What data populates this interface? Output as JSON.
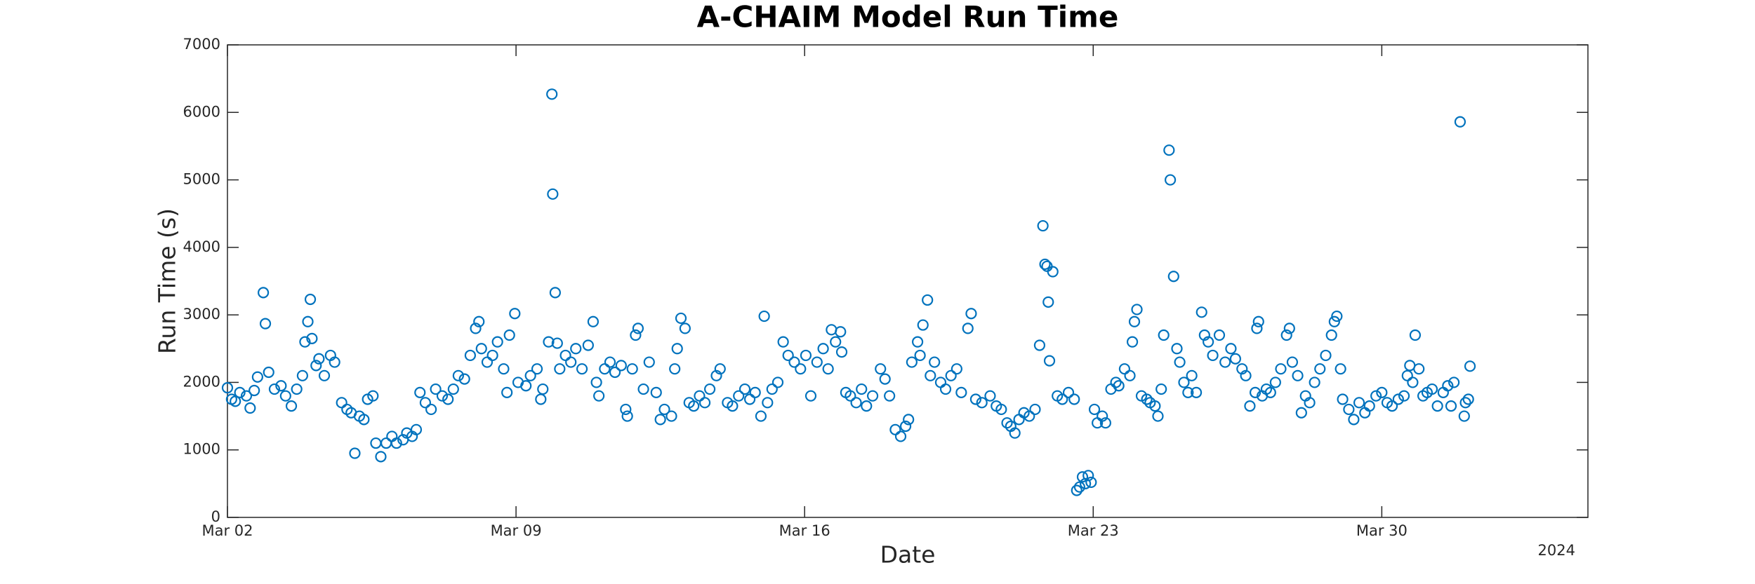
{
  "chart_data": {
    "type": "scatter",
    "title": "A-CHAIM Model Run Time",
    "xlabel": "Date",
    "ylabel": "Run Time (s)",
    "annotation": "2024",
    "color": "#0072bd",
    "xlim": [
      0,
      33
    ],
    "xticks": [
      {
        "value": 0,
        "label": "Mar 02"
      },
      {
        "value": 7,
        "label": "Mar 09"
      },
      {
        "value": 14,
        "label": "Mar 16"
      },
      {
        "value": 21,
        "label": "Mar 23"
      },
      {
        "value": 28,
        "label": "Mar 30"
      }
    ],
    "ylim": [
      0,
      7000
    ],
    "yticks": [
      0,
      1000,
      2000,
      3000,
      4000,
      5000,
      6000,
      7000
    ],
    "x": [
      0,
      0.1,
      0.19,
      0.3,
      0.46,
      0.55,
      0.65,
      0.73,
      0.87,
      0.92,
      1.0,
      1.14,
      1.3,
      1.41,
      1.55,
      1.68,
      1.82,
      1.88,
      1.95,
      2.01,
      2.05,
      2.15,
      2.22,
      2.35,
      2.5,
      2.6,
      2.77,
      2.9,
      3.0,
      3.09,
      3.2,
      3.31,
      3.4,
      3.53,
      3.6,
      3.72,
      3.85,
      3.99,
      4.1,
      4.26,
      4.35,
      4.48,
      4.58,
      4.67,
      4.8,
      4.94,
      5.05,
      5.21,
      5.35,
      5.48,
      5.6,
      5.75,
      5.89,
      6.02,
      6.1,
      6.16,
      6.3,
      6.43,
      6.55,
      6.7,
      6.78,
      6.84,
      6.97,
      7.05,
      7.24,
      7.35,
      7.51,
      7.6,
      7.65,
      7.79,
      7.87,
      7.89,
      7.95,
      8.0,
      8.06,
      8.2,
      8.33,
      8.45,
      8.6,
      8.75,
      8.87,
      8.95,
      9.01,
      9.15,
      9.28,
      9.4,
      9.55,
      9.66,
      9.7,
      9.82,
      9.9,
      9.96,
      10.09,
      10.23,
      10.4,
      10.5,
      10.6,
      10.77,
      10.85,
      10.91,
      11.0,
      11.1,
      11.2,
      11.31,
      11.45,
      11.58,
      11.7,
      11.86,
      11.95,
      12.13,
      12.25,
      12.4,
      12.55,
      12.67,
      12.8,
      12.94,
      13.02,
      13.1,
      13.21,
      13.35,
      13.48,
      13.6,
      13.75,
      13.9,
      14.03,
      14.15,
      14.3,
      14.45,
      14.57,
      14.65,
      14.75,
      14.87,
      14.9,
      15.0,
      15.11,
      15.25,
      15.38,
      15.5,
      15.65,
      15.84,
      15.95,
      16.06,
      16.2,
      16.33,
      16.45,
      16.52,
      16.6,
      16.74,
      16.8,
      16.87,
      16.98,
      17.05,
      17.15,
      17.3,
      17.42,
      17.55,
      17.69,
      17.8,
      17.96,
      18.04,
      18.15,
      18.3,
      18.5,
      18.65,
      18.77,
      18.91,
      19.0,
      19.1,
      19.2,
      19.32,
      19.45,
      19.59,
      19.7,
      19.78,
      19.83,
      19.88,
      19.91,
      19.94,
      20.02,
      20.13,
      20.25,
      20.4,
      20.54,
      20.6,
      20.67,
      20.74,
      20.81,
      20.88,
      20.95,
      21.03,
      21.1,
      21.22,
      21.3,
      21.43,
      21.55,
      21.62,
      21.76,
      21.89,
      21.95,
      22.0,
      22.06,
      22.17,
      22.3,
      22.38,
      22.5,
      22.57,
      22.65,
      22.71,
      22.84,
      22.87,
      22.95,
      23.03,
      23.1,
      23.2,
      23.3,
      23.39,
      23.5,
      23.63,
      23.7,
      23.79,
      23.9,
      24.06,
      24.2,
      24.34,
      24.45,
      24.61,
      24.7,
      24.8,
      24.93,
      24.97,
      25.01,
      25.1,
      25.2,
      25.3,
      25.42,
      25.55,
      25.69,
      25.76,
      25.83,
      25.96,
      26.05,
      26.15,
      26.25,
      26.37,
      26.5,
      26.64,
      26.78,
      26.85,
      26.91,
      27.0,
      27.05,
      27.2,
      27.32,
      27.45,
      27.59,
      27.7,
      27.86,
      28.0,
      28.13,
      28.25,
      28.4,
      28.54,
      28.62,
      28.68,
      28.75,
      28.81,
      28.9,
      29.0,
      29.1,
      29.22,
      29.35,
      29.49,
      29.6,
      29.68,
      29.75,
      29.9,
      30.0,
      30.03,
      30.1,
      30.14
    ],
    "values": [
      1920,
      1750,
      1720,
      1850,
      1800,
      1620,
      1880,
      2080,
      3330,
      2870,
      2150,
      1900,
      1950,
      1800,
      1650,
      1900,
      2100,
      2600,
      2900,
      3230,
      2650,
      2250,
      2350,
      2100,
      2400,
      2300,
      1700,
      1600,
      1550,
      950,
      1500,
      1450,
      1750,
      1800,
      1100,
      900,
      1100,
      1200,
      1100,
      1150,
      1250,
      1200,
      1300,
      1850,
      1700,
      1600,
      1900,
      1800,
      1750,
      1900,
      2100,
      2050,
      2400,
      2800,
      2900,
      2500,
      2300,
      2400,
      2600,
      2200,
      1850,
      2700,
      3020,
      2000,
      1950,
      2100,
      2200,
      1750,
      1900,
      2600,
      6270,
      4790,
      3330,
      2580,
      2200,
      2400,
      2300,
      2500,
      2200,
      2550,
      2900,
      2000,
      1800,
      2200,
      2300,
      2150,
      2250,
      1600,
      1500,
      2200,
      2700,
      2800,
      1900,
      2300,
      1850,
      1450,
      1600,
      1500,
      2200,
      2500,
      2950,
      2800,
      1700,
      1650,
      1800,
      1700,
      1900,
      2100,
      2200,
      1700,
      1650,
      1800,
      1900,
      1750,
      1850,
      1500,
      2980,
      1700,
      1900,
      2000,
      2600,
      2400,
      2300,
      2200,
      2400,
      1800,
      2300,
      2500,
      2200,
      2780,
      2600,
      2750,
      2450,
      1850,
      1800,
      1700,
      1900,
      1650,
      1800,
      2200,
      2050,
      1800,
      1300,
      1200,
      1350,
      1450,
      2300,
      2600,
      2400,
      2850,
      3220,
      2100,
      2300,
      2000,
      1900,
      2100,
      2200,
      1850,
      2800,
      3020,
      1750,
      1700,
      1800,
      1650,
      1600,
      1400,
      1350,
      1250,
      1450,
      1550,
      1500,
      1600,
      2550,
      4320,
      3750,
      3720,
      3190,
      2320,
      3640,
      1800,
      1750,
      1850,
      1750,
      400,
      450,
      600,
      500,
      620,
      520,
      1600,
      1400,
      1500,
      1400,
      1900,
      2000,
      1950,
      2200,
      2100,
      2600,
      2900,
      3080,
      1800,
      1750,
      1700,
      1650,
      1500,
      1900,
      2700,
      5440,
      5000,
      3570,
      2500,
      2300,
      2000,
      1850,
      2100,
      1850,
      3040,
      2700,
      2600,
      2400,
      2700,
      2300,
      2500,
      2350,
      2200,
      2100,
      1650,
      1850,
      2800,
      2900,
      1800,
      1900,
      1850,
      2000,
      2200,
      2700,
      2800,
      2300,
      2100,
      1550,
      1800,
      1700,
      2000,
      2200,
      2400,
      2700,
      2900,
      2980,
      2200,
      1750,
      1600,
      1450,
      1700,
      1550,
      1650,
      1800,
      1850,
      1700,
      1650,
      1750,
      1800,
      2100,
      2250,
      2000,
      2700,
      2200,
      1800,
      1850,
      1900,
      1650,
      1850,
      1950,
      1650,
      2000,
      5860,
      1500,
      1700,
      1750,
      2240
    ]
  }
}
